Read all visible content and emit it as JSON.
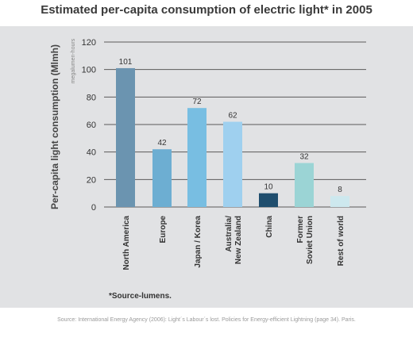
{
  "title": "Estimated per-capita consumption of electric light* in 2005",
  "footnote": "*Source-lumens.",
  "source": "Source: International Energy Agency (2006): Light´s Labour´s lost. Policies for Energy-efficient Lightning (page 34). Paris.",
  "colors": {
    "panel": "#e1e2e4",
    "grid": "#5a5a5a"
  },
  "chart_data": {
    "type": "bar",
    "title": "Estimated per-capita consumption of electric light* in 2005",
    "ylabel": "Per-capita light consumption (Mlmh)",
    "ylabel_sub": "megalumen-hours",
    "ylim": [
      0,
      120
    ],
    "yticks": [
      "0",
      "20",
      "40",
      "60",
      "80",
      "100",
      "120"
    ],
    "grid": true,
    "categories": [
      "North America",
      "Europe",
      "Japan / Korea",
      "Australia/\nNew Zealand",
      "China",
      "Former\nSoviet Union",
      "Rest of world"
    ],
    "values": [
      101,
      42,
      72,
      62,
      10,
      32,
      8
    ],
    "labels": [
      "101",
      "42",
      "72",
      "62",
      "10",
      "32",
      "8"
    ],
    "bar_colors": [
      "#6b94b0",
      "#6daed2",
      "#78bee2",
      "#9fd0ef",
      "#1f4e6e",
      "#9bd4d5",
      "#cde8ee"
    ]
  }
}
